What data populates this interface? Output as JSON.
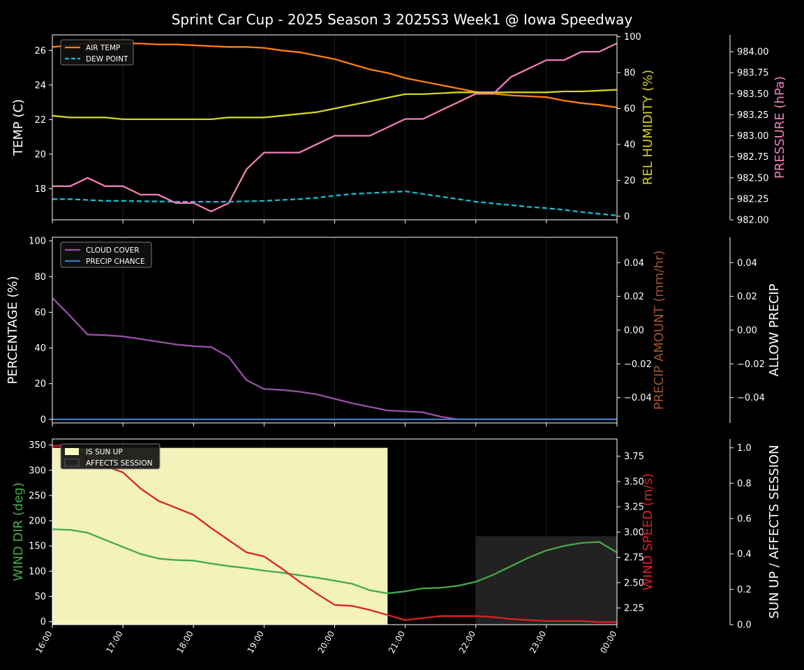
{
  "title": "Sprint Car Cup - 2025 Season 3 2025S3 Week1 @ Iowa Speedway",
  "colors": {
    "background": "#000000",
    "air_temp": "#ff7f0e",
    "dew_point": "#17becf",
    "humidity": "#d4d419",
    "pressure": "#f07fb8",
    "cloud": "#9a4fa8",
    "precip_chance": "#3a78c4",
    "precip_amount": "#a0522d",
    "wind_dir": "#44aa44",
    "wind_speed": "#dd2222",
    "sun_up": "#ffffc4",
    "affects_session": "#222222"
  },
  "chart_data": [
    {
      "type": "line",
      "panel": "temperature",
      "ylabel": "TEMP (C)",
      "ylim": [
        16.2,
        26.9
      ],
      "yticks": [
        "18",
        "20",
        "22",
        "24",
        "26"
      ],
      "legend": [
        "AIR TEMP",
        "DEW POINT"
      ],
      "legend_position": "upper-left",
      "right_axes": [
        {
          "label": "REL HUMIDITY (%)",
          "ylim": [
            -2,
            101
          ],
          "ticks": [
            "0",
            "20",
            "40",
            "60",
            "80",
            "100"
          ]
        },
        {
          "label": "PRESSURE (hPa)",
          "ylim": [
            982.0,
            984.2
          ],
          "ticks": [
            "982.00",
            "982.25",
            "982.50",
            "982.75",
            "983.00",
            "983.25",
            "983.50",
            "983.75",
            "984.00"
          ]
        }
      ],
      "x": [
        "16:00",
        "16:15",
        "16:30",
        "16:45",
        "17:00",
        "17:15",
        "17:30",
        "17:45",
        "18:00",
        "18:15",
        "18:30",
        "18:45",
        "19:00",
        "19:15",
        "19:30",
        "19:45",
        "20:00",
        "20:15",
        "20:30",
        "20:45",
        "21:00",
        "21:15",
        "21:30",
        "21:45",
        "22:00",
        "22:15",
        "22:30",
        "22:45",
        "23:00",
        "23:15",
        "23:30",
        "23:45",
        "00:00"
      ],
      "series": [
        {
          "name": "AIR TEMP",
          "axis": "left",
          "values": [
            26.2,
            26.3,
            26.4,
            26.4,
            26.4,
            26.4,
            26.35,
            26.35,
            26.3,
            26.25,
            26.2,
            26.2,
            26.15,
            26.0,
            25.9,
            25.7,
            25.5,
            25.2,
            24.9,
            24.7,
            24.4,
            24.2,
            24.0,
            23.8,
            23.6,
            23.5,
            23.4,
            23.35,
            23.3,
            23.1,
            22.95,
            22.85,
            22.7
          ]
        },
        {
          "name": "DEW POINT",
          "axis": "left",
          "values": [
            17.4,
            17.4,
            17.35,
            17.3,
            17.3,
            17.28,
            17.26,
            17.25,
            17.25,
            17.25,
            17.25,
            17.27,
            17.3,
            17.35,
            17.4,
            17.48,
            17.6,
            17.7,
            17.75,
            17.8,
            17.85,
            17.7,
            17.55,
            17.4,
            17.25,
            17.15,
            17.05,
            16.95,
            16.88,
            16.78,
            16.65,
            16.55,
            16.45
          ]
        },
        {
          "name": "REL HUMIDITY",
          "axis": "right1",
          "values": [
            56,
            55,
            55,
            55,
            54,
            54,
            54,
            54,
            54,
            54,
            55,
            55,
            55,
            56,
            57,
            58,
            60,
            62,
            64,
            66,
            68,
            68,
            68.5,
            69,
            69,
            69,
            69,
            69,
            69,
            69.5,
            69.5,
            70,
            70.5
          ]
        },
        {
          "name": "PRESSURE",
          "axis": "right2",
          "values": [
            982.4,
            982.4,
            982.5,
            982.4,
            982.4,
            982.3,
            982.3,
            982.2,
            982.2,
            982.1,
            982.2,
            982.6,
            982.8,
            982.8,
            982.8,
            982.9,
            983.0,
            983.0,
            983.0,
            983.1,
            983.2,
            983.2,
            983.3,
            983.4,
            983.5,
            983.5,
            983.7,
            983.8,
            983.9,
            983.9,
            984.0,
            984.0,
            984.1
          ]
        }
      ]
    },
    {
      "type": "line",
      "panel": "cloud",
      "ylabel": "PERCENTAGE (%)",
      "ylim": [
        -2,
        102
      ],
      "yticks": [
        "0",
        "20",
        "40",
        "60",
        "80",
        "100"
      ],
      "legend": [
        "CLOUD COVER",
        "PRECIP CHANCE"
      ],
      "legend_position": "upper-left",
      "right_axes": [
        {
          "label": "PRECIP AMOUNT (mm/hr)",
          "ylim": [
            -0.055,
            0.055
          ],
          "ticks": [
            "−0.04",
            "−0.02",
            "0.00",
            "0.02",
            "0.04"
          ]
        },
        {
          "label": "ALLOW PRECIP",
          "ylim": [
            -0.055,
            0.055
          ],
          "ticks": [
            "−0.04",
            "−0.02",
            "0.00",
            "0.02",
            "0.04"
          ]
        }
      ],
      "x": [
        "16:00",
        "16:15",
        "16:30",
        "16:45",
        "17:00",
        "17:15",
        "17:30",
        "17:45",
        "18:00",
        "18:15",
        "18:30",
        "18:45",
        "19:00",
        "19:15",
        "19:30",
        "19:45",
        "20:00",
        "20:15",
        "20:30",
        "20:45",
        "21:00",
        "21:15",
        "21:30",
        "21:45",
        "22:00",
        "22:15",
        "22:30",
        "22:45",
        "23:00",
        "23:15",
        "23:30",
        "23:45",
        "00:00"
      ],
      "series": [
        {
          "name": "CLOUD COVER",
          "values": [
            68,
            58,
            47.5,
            47.2,
            46.5,
            45,
            43.5,
            42,
            41,
            40.5,
            35,
            22,
            17,
            16.5,
            15.5,
            14,
            11.5,
            9,
            7,
            5,
            4.5,
            4,
            1.5,
            0,
            0,
            0,
            0,
            0,
            0,
            0,
            0,
            0,
            0
          ]
        },
        {
          "name": "PRECIP CHANCE",
          "values": [
            0,
            0,
            0,
            0,
            0,
            0,
            0,
            0,
            0,
            0,
            0,
            0,
            0,
            0,
            0,
            0,
            0,
            0,
            0,
            0,
            0,
            0,
            0,
            0,
            0,
            0,
            0,
            0,
            0,
            0,
            0,
            0,
            0
          ]
        }
      ]
    },
    {
      "type": "line",
      "panel": "wind",
      "ylabel": "WIND DIR (deg)",
      "ylim": [
        -6,
        362
      ],
      "yticks": [
        "0",
        "50",
        "100",
        "150",
        "200",
        "250",
        "300",
        "350"
      ],
      "legend": [
        "IS SUN UP",
        "AFFECTS SESSION"
      ],
      "legend_position": "upper-left",
      "right_axes": [
        {
          "label": "WIND SPEED (m/s)",
          "ylim": [
            2.085,
            3.92
          ],
          "ticks": [
            "2.25",
            "2.50",
            "2.75",
            "3.00",
            "3.25",
            "3.50",
            "3.75"
          ]
        },
        {
          "label": "SUN UP / AFFECTS SESSION",
          "ylim": [
            0.0,
            1.05
          ],
          "ticks": [
            "0.0",
            "0.2",
            "0.4",
            "0.6",
            "0.8",
            "1.0"
          ]
        }
      ],
      "bands": [
        {
          "name": "IS SUN UP",
          "from": "16:00",
          "to": "20:45",
          "level": 1.0
        },
        {
          "name": "AFFECTS SESSION",
          "from": "22:00",
          "to": "00:00",
          "level": 0.5
        }
      ],
      "x": [
        "16:00",
        "16:15",
        "16:30",
        "16:45",
        "17:00",
        "17:15",
        "17:30",
        "17:45",
        "18:00",
        "18:15",
        "18:30",
        "18:45",
        "19:00",
        "19:15",
        "19:30",
        "19:45",
        "20:00",
        "20:15",
        "20:30",
        "20:45",
        "21:00",
        "21:15",
        "21:30",
        "21:45",
        "22:00",
        "22:15",
        "22:30",
        "22:45",
        "23:00",
        "23:15",
        "23:30",
        "23:45",
        "00:00"
      ],
      "series": [
        {
          "name": "WIND DIR",
          "axis": "left",
          "values": [
            183,
            182,
            176,
            162,
            148,
            134,
            125,
            122,
            121,
            115,
            110,
            106,
            101,
            97,
            92,
            87,
            81,
            75,
            62,
            56,
            60,
            66,
            67,
            71,
            79,
            93,
            110,
            127,
            141,
            150,
            156,
            158,
            137
          ]
        },
        {
          "name": "WIND SPEED",
          "axis": "right1",
          "values": [
            3.85,
            3.86,
            3.72,
            3.65,
            3.59,
            3.43,
            3.31,
            3.24,
            3.17,
            3.04,
            2.92,
            2.8,
            2.76,
            2.64,
            2.51,
            2.39,
            2.28,
            2.27,
            2.23,
            2.18,
            2.13,
            2.15,
            2.17,
            2.17,
            2.17,
            2.16,
            2.14,
            2.13,
            2.12,
            2.12,
            2.12,
            2.11,
            2.11
          ]
        }
      ]
    }
  ],
  "xticks": [
    "16:00",
    "17:00",
    "18:00",
    "19:00",
    "20:00",
    "21:00",
    "22:00",
    "23:00",
    "00:00"
  ]
}
